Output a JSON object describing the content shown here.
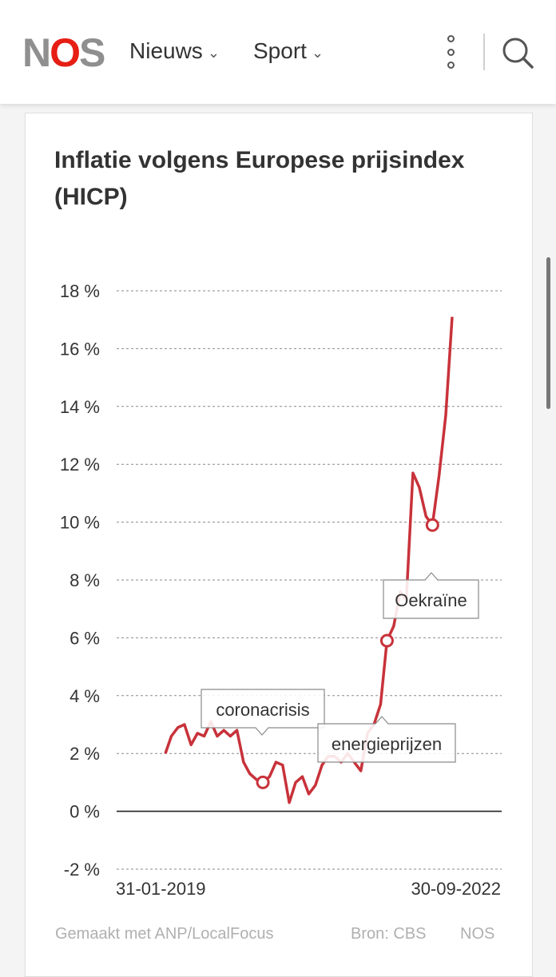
{
  "header": {
    "logo_left": "N",
    "logo_o": "O",
    "logo_right": "S",
    "nav": [
      {
        "label": "Nieuws"
      },
      {
        "label": "Sport"
      }
    ],
    "icons": [
      "chevron-down-icon",
      "more-vertical-icon",
      "search-icon"
    ]
  },
  "colors": {
    "brand": "#e61e14",
    "line": "#c8323a",
    "text": "#333333",
    "muted": "#b0b0b0"
  },
  "chart_data": {
    "type": "line",
    "title": "Inflatie volgens Europese prijsindex (HICP)",
    "xlabel": "",
    "ylabel": "",
    "ylim": [
      -2,
      18
    ],
    "yticks": [
      {
        "value": 18,
        "label": "18 %"
      },
      {
        "value": 16,
        "label": "16 %"
      },
      {
        "value": 14,
        "label": "14 %"
      },
      {
        "value": 12,
        "label": "12 %"
      },
      {
        "value": 10,
        "label": "10 %"
      },
      {
        "value": 8,
        "label": "8 %"
      },
      {
        "value": 6,
        "label": "6 %"
      },
      {
        "value": 4,
        "label": "4 %"
      },
      {
        "value": 2,
        "label": "2 %"
      },
      {
        "value": 0,
        "label": "0 %"
      },
      {
        "value": -2,
        "label": "-2 %"
      }
    ],
    "xlim": [
      "2019-01-31",
      "2022-09-30"
    ],
    "xtick_labels": [
      "31-01-2019",
      "30-09-2022"
    ],
    "grid": true,
    "series": [
      {
        "points": [
          [
            "2019-01-31",
            2.0
          ],
          [
            "2019-02-28",
            2.6
          ],
          [
            "2019-03-31",
            2.9
          ],
          [
            "2019-04-30",
            3.0
          ],
          [
            "2019-05-31",
            2.3
          ],
          [
            "2019-06-30",
            2.7
          ],
          [
            "2019-07-31",
            2.6
          ],
          [
            "2019-08-31",
            3.1
          ],
          [
            "2019-09-30",
            2.6
          ],
          [
            "2019-10-31",
            2.8
          ],
          [
            "2019-11-30",
            2.6
          ],
          [
            "2019-12-31",
            2.8
          ],
          [
            "2020-01-31",
            1.7
          ],
          [
            "2020-02-29",
            1.3
          ],
          [
            "2020-03-31",
            1.1
          ],
          [
            "2020-04-30",
            1.0
          ],
          [
            "2020-05-31",
            1.2
          ],
          [
            "2020-06-30",
            1.7
          ],
          [
            "2020-07-31",
            1.6
          ],
          [
            "2020-08-31",
            0.3
          ],
          [
            "2020-09-30",
            1.0
          ],
          [
            "2020-10-31",
            1.2
          ],
          [
            "2020-11-30",
            0.6
          ],
          [
            "2020-12-31",
            0.9
          ],
          [
            "2021-01-31",
            1.6
          ],
          [
            "2021-02-28",
            1.9
          ],
          [
            "2021-03-31",
            1.9
          ],
          [
            "2021-04-30",
            1.7
          ],
          [
            "2021-05-31",
            2.0
          ],
          [
            "2021-06-30",
            1.7
          ],
          [
            "2021-07-31",
            1.4
          ],
          [
            "2021-08-31",
            2.7
          ],
          [
            "2021-09-30",
            3.0
          ],
          [
            "2021-10-31",
            3.7
          ],
          [
            "2021-11-30",
            5.9
          ],
          [
            "2021-12-31",
            6.4
          ],
          [
            "2022-01-31",
            7.6
          ],
          [
            "2022-02-28",
            7.3
          ],
          [
            "2022-03-31",
            11.7
          ],
          [
            "2022-04-30",
            11.2
          ],
          [
            "2022-05-31",
            10.2
          ],
          [
            "2022-06-30",
            9.9
          ],
          [
            "2022-07-31",
            11.6
          ],
          [
            "2022-08-31",
            13.7
          ],
          [
            "2022-09-30",
            17.1
          ]
        ]
      }
    ],
    "annotations": [
      {
        "label": "coronacrisis",
        "x": "2020-04-30",
        "y": 1.0,
        "pointer": "up"
      },
      {
        "label": "energieprijzen",
        "x": "2021-11-30",
        "y": 5.9,
        "pointer": "up"
      },
      {
        "label": "Oekraïne",
        "x": "2022-06-30",
        "y": 9.9,
        "pointer": "up"
      }
    ]
  },
  "footer": {
    "made_with": "Gemaakt met ANP/LocalFocus",
    "source": "Bron: CBS",
    "brand": "NOS"
  }
}
